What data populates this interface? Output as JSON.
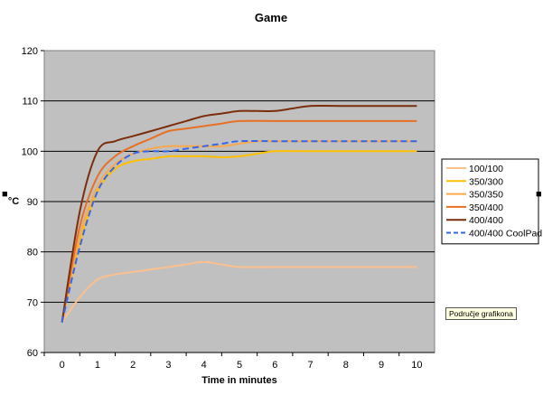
{
  "chart_data": {
    "type": "line",
    "title": "Game",
    "xlabel": "Time in minutes",
    "ylabel": "°C",
    "xlim": [
      0,
      10
    ],
    "ylim": [
      60,
      120
    ],
    "x_ticks": [
      0,
      1,
      2,
      3,
      4,
      5,
      6,
      7,
      8,
      9,
      10
    ],
    "y_ticks": [
      60,
      70,
      80,
      90,
      100,
      110,
      120
    ],
    "grid": "horizontal",
    "plot_background": "#c0c0c0",
    "legend_position": "right",
    "series": [
      {
        "name": "100/100",
        "color": "#fbc08c",
        "dashed": false,
        "points": [
          [
            0,
            66
          ],
          [
            0.5,
            71
          ],
          [
            1,
            74.5
          ],
          [
            1.5,
            75.5
          ],
          [
            2,
            76
          ],
          [
            2.5,
            76.5
          ],
          [
            3,
            77
          ],
          [
            3.5,
            77.5
          ],
          [
            4,
            78
          ],
          [
            4.5,
            77.5
          ],
          [
            5,
            77
          ],
          [
            6,
            77
          ],
          [
            7,
            77
          ],
          [
            8,
            77
          ],
          [
            9,
            77
          ],
          [
            10,
            77
          ]
        ]
      },
      {
        "name": "350/300",
        "color": "#ffc000",
        "dashed": false,
        "points": [
          [
            0,
            66
          ],
          [
            0.5,
            82
          ],
          [
            1,
            92
          ],
          [
            1.5,
            96.5
          ],
          [
            2,
            98
          ],
          [
            2.5,
            98.5
          ],
          [
            3,
            99
          ],
          [
            3.5,
            99
          ],
          [
            4,
            99
          ],
          [
            4.5,
            98.8
          ],
          [
            5,
            99
          ],
          [
            5.5,
            99.5
          ],
          [
            6,
            100
          ],
          [
            7,
            100
          ],
          [
            8,
            100
          ],
          [
            9,
            100
          ],
          [
            10,
            100
          ]
        ]
      },
      {
        "name": "350/350",
        "color": "#f9a94a",
        "dashed": false,
        "points": [
          [
            0,
            66
          ],
          [
            0.5,
            83
          ],
          [
            1,
            93
          ],
          [
            1.5,
            97.5
          ],
          [
            2,
            99.5
          ],
          [
            2.5,
            100.5
          ],
          [
            3,
            101
          ],
          [
            3.5,
            101
          ],
          [
            4,
            101
          ],
          [
            4.5,
            101
          ],
          [
            5,
            101.5
          ],
          [
            5.5,
            102
          ],
          [
            6,
            102
          ],
          [
            7,
            102
          ],
          [
            8,
            102
          ],
          [
            9,
            102
          ],
          [
            10,
            102
          ]
        ]
      },
      {
        "name": "350/400",
        "color": "#e87025",
        "dashed": false,
        "points": [
          [
            0,
            66
          ],
          [
            0.5,
            85
          ],
          [
            1,
            95
          ],
          [
            1.5,
            99
          ],
          [
            2,
            101
          ],
          [
            2.5,
            102.5
          ],
          [
            3,
            104
          ],
          [
            3.5,
            104.5
          ],
          [
            4,
            105
          ],
          [
            4.5,
            105.5
          ],
          [
            5,
            106
          ],
          [
            6,
            106
          ],
          [
            7,
            106
          ],
          [
            8,
            106
          ],
          [
            9,
            106
          ],
          [
            10,
            106
          ]
        ]
      },
      {
        "name": "400/400",
        "color": "#7b2e0c",
        "dashed": false,
        "points": [
          [
            0,
            66
          ],
          [
            0.5,
            88
          ],
          [
            1,
            100
          ],
          [
            1.5,
            102
          ],
          [
            2,
            103
          ],
          [
            2.5,
            104
          ],
          [
            3,
            105
          ],
          [
            3.5,
            106
          ],
          [
            4,
            107
          ],
          [
            4.5,
            107.5
          ],
          [
            5,
            108
          ],
          [
            5.5,
            108
          ],
          [
            6,
            108
          ],
          [
            6.5,
            108.5
          ],
          [
            7,
            109
          ],
          [
            8,
            109
          ],
          [
            9,
            109
          ],
          [
            10,
            109
          ]
        ]
      },
      {
        "name": "400/400 CoolPad",
        "color": "#3366ee",
        "dashed": true,
        "points": [
          [
            0,
            66
          ],
          [
            0.5,
            81
          ],
          [
            1,
            92
          ],
          [
            1.5,
            97
          ],
          [
            2,
            99.5
          ],
          [
            2.5,
            100
          ],
          [
            3,
            100
          ],
          [
            3.5,
            100.5
          ],
          [
            4,
            101
          ],
          [
            4.5,
            101.5
          ],
          [
            5,
            102
          ],
          [
            6,
            102
          ],
          [
            7,
            102
          ],
          [
            8,
            102
          ],
          [
            9,
            102
          ],
          [
            10,
            102
          ]
        ]
      }
    ]
  },
  "tooltip": "Područje grafikona"
}
